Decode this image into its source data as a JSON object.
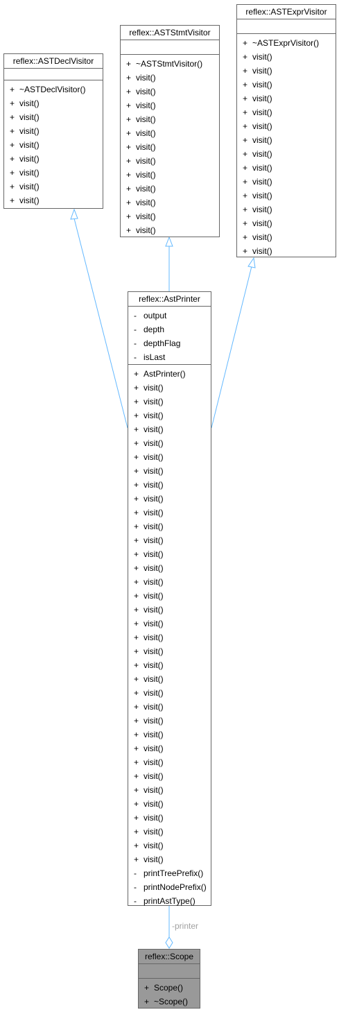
{
  "colors": {
    "edge": "#63b8ff",
    "box_border": "#666666",
    "highlight_fill": "#999999",
    "label": "#a0a0a0"
  },
  "classes": {
    "decl_visitor": {
      "name": "reflex::ASTDeclVisitor",
      "attributes": [],
      "methods": [
        {
          "vis": "+",
          "name": "~ASTDeclVisitor()"
        },
        {
          "vis": "+",
          "name": "visit()"
        },
        {
          "vis": "+",
          "name": "visit()"
        },
        {
          "vis": "+",
          "name": "visit()"
        },
        {
          "vis": "+",
          "name": "visit()"
        },
        {
          "vis": "+",
          "name": "visit()"
        },
        {
          "vis": "+",
          "name": "visit()"
        },
        {
          "vis": "+",
          "name": "visit()"
        },
        {
          "vis": "+",
          "name": "visit()"
        }
      ]
    },
    "stmt_visitor": {
      "name": "reflex::ASTStmtVisitor",
      "attributes": [],
      "methods": [
        {
          "vis": "+",
          "name": "~ASTStmtVisitor()"
        },
        {
          "vis": "+",
          "name": "visit()"
        },
        {
          "vis": "+",
          "name": "visit()"
        },
        {
          "vis": "+",
          "name": "visit()"
        },
        {
          "vis": "+",
          "name": "visit()"
        },
        {
          "vis": "+",
          "name": "visit()"
        },
        {
          "vis": "+",
          "name": "visit()"
        },
        {
          "vis": "+",
          "name": "visit()"
        },
        {
          "vis": "+",
          "name": "visit()"
        },
        {
          "vis": "+",
          "name": "visit()"
        },
        {
          "vis": "+",
          "name": "visit()"
        },
        {
          "vis": "+",
          "name": "visit()"
        },
        {
          "vis": "+",
          "name": "visit()"
        }
      ]
    },
    "expr_visitor": {
      "name": "reflex::ASTExprVisitor",
      "attributes": [],
      "methods": [
        {
          "vis": "+",
          "name": "~ASTExprVisitor()"
        },
        {
          "vis": "+",
          "name": "visit()"
        },
        {
          "vis": "+",
          "name": "visit()"
        },
        {
          "vis": "+",
          "name": "visit()"
        },
        {
          "vis": "+",
          "name": "visit()"
        },
        {
          "vis": "+",
          "name": "visit()"
        },
        {
          "vis": "+",
          "name": "visit()"
        },
        {
          "vis": "+",
          "name": "visit()"
        },
        {
          "vis": "+",
          "name": "visit()"
        },
        {
          "vis": "+",
          "name": "visit()"
        },
        {
          "vis": "+",
          "name": "visit()"
        },
        {
          "vis": "+",
          "name": "visit()"
        },
        {
          "vis": "+",
          "name": "visit()"
        },
        {
          "vis": "+",
          "name": "visit()"
        },
        {
          "vis": "+",
          "name": "visit()"
        },
        {
          "vis": "+",
          "name": "visit()"
        }
      ]
    },
    "ast_printer": {
      "name": "reflex::AstPrinter",
      "attributes": [
        {
          "vis": "-",
          "name": "output"
        },
        {
          "vis": "-",
          "name": "depth"
        },
        {
          "vis": "-",
          "name": "depthFlag"
        },
        {
          "vis": "-",
          "name": "isLast"
        }
      ],
      "methods": [
        {
          "vis": "+",
          "name": "AstPrinter()"
        },
        {
          "vis": "+",
          "name": "visit()"
        },
        {
          "vis": "+",
          "name": "visit()"
        },
        {
          "vis": "+",
          "name": "visit()"
        },
        {
          "vis": "+",
          "name": "visit()"
        },
        {
          "vis": "+",
          "name": "visit()"
        },
        {
          "vis": "+",
          "name": "visit()"
        },
        {
          "vis": "+",
          "name": "visit()"
        },
        {
          "vis": "+",
          "name": "visit()"
        },
        {
          "vis": "+",
          "name": "visit()"
        },
        {
          "vis": "+",
          "name": "visit()"
        },
        {
          "vis": "+",
          "name": "visit()"
        },
        {
          "vis": "+",
          "name": "visit()"
        },
        {
          "vis": "+",
          "name": "visit()"
        },
        {
          "vis": "+",
          "name": "visit()"
        },
        {
          "vis": "+",
          "name": "visit()"
        },
        {
          "vis": "+",
          "name": "visit()"
        },
        {
          "vis": "+",
          "name": "visit()"
        },
        {
          "vis": "+",
          "name": "visit()"
        },
        {
          "vis": "+",
          "name": "visit()"
        },
        {
          "vis": "+",
          "name": "visit()"
        },
        {
          "vis": "+",
          "name": "visit()"
        },
        {
          "vis": "+",
          "name": "visit()"
        },
        {
          "vis": "+",
          "name": "visit()"
        },
        {
          "vis": "+",
          "name": "visit()"
        },
        {
          "vis": "+",
          "name": "visit()"
        },
        {
          "vis": "+",
          "name": "visit()"
        },
        {
          "vis": "+",
          "name": "visit()"
        },
        {
          "vis": "+",
          "name": "visit()"
        },
        {
          "vis": "+",
          "name": "visit()"
        },
        {
          "vis": "+",
          "name": "visit()"
        },
        {
          "vis": "+",
          "name": "visit()"
        },
        {
          "vis": "+",
          "name": "visit()"
        },
        {
          "vis": "+",
          "name": "visit()"
        },
        {
          "vis": "+",
          "name": "visit()"
        },
        {
          "vis": "+",
          "name": "visit()"
        },
        {
          "vis": "-",
          "name": "printTreePrefix()"
        },
        {
          "vis": "-",
          "name": "printNodePrefix()"
        },
        {
          "vis": "-",
          "name": "printAstType()"
        }
      ]
    },
    "scope": {
      "name": "reflex::Scope",
      "attributes": [],
      "methods": [
        {
          "vis": "+",
          "name": "Scope()"
        },
        {
          "vis": "+",
          "name": "~Scope()"
        }
      ]
    }
  },
  "relations": {
    "printer_label": "-printer"
  }
}
